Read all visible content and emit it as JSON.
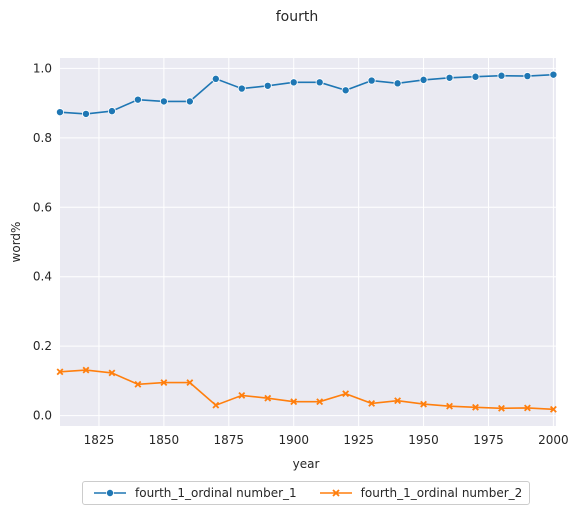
{
  "chart_data": {
    "type": "line",
    "title": "fourth",
    "xlabel": "year",
    "ylabel": "word%",
    "xlim": [
      1810,
      2001
    ],
    "ylim": [
      -0.03,
      1.03
    ],
    "xticks": [
      1825,
      1850,
      1875,
      1900,
      1925,
      1950,
      1975,
      2000
    ],
    "yticks": [
      0.0,
      0.2,
      0.4,
      0.6,
      0.8,
      1.0
    ],
    "ytick_labels": [
      "0.0",
      "0.2",
      "0.4",
      "0.6",
      "0.8",
      "1.0"
    ],
    "grid": true,
    "legend_position": "bottom-center",
    "x": [
      1810,
      1820,
      1830,
      1840,
      1850,
      1860,
      1870,
      1880,
      1890,
      1900,
      1910,
      1920,
      1930,
      1940,
      1950,
      1960,
      1970,
      1980,
      1990,
      2000
    ],
    "series": [
      {
        "name": "fourth_1_ordinal number_1",
        "color": "#1f77b4",
        "marker": "circle",
        "values": [
          0.874,
          0.869,
          0.877,
          0.91,
          0.905,
          0.905,
          0.97,
          0.942,
          0.95,
          0.96,
          0.96,
          0.937,
          0.965,
          0.957,
          0.967,
          0.973,
          0.976,
          0.979,
          0.978,
          0.982
        ]
      },
      {
        "name": "fourth_1_ordinal number_2",
        "color": "#ff7f0e",
        "marker": "x",
        "values": [
          0.126,
          0.131,
          0.123,
          0.09,
          0.095,
          0.095,
          0.03,
          0.058,
          0.05,
          0.04,
          0.04,
          0.063,
          0.035,
          0.043,
          0.033,
          0.027,
          0.024,
          0.021,
          0.022,
          0.018
        ]
      }
    ]
  }
}
